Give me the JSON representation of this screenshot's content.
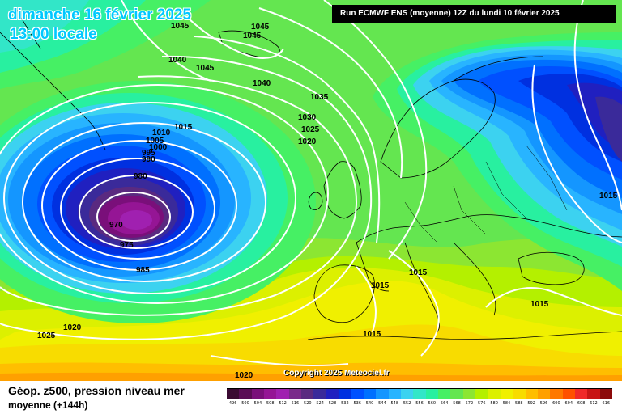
{
  "header": {
    "date": "dimanche 16 février 2025",
    "time": "13:00 locale",
    "run": "Run ECMWF ENS (moyenne) 12Z du lundi 10 février 2025"
  },
  "footer": {
    "title": "Géop. z500, pression niveau mer",
    "subtitle": "moyenne  (+144h)",
    "copyright": "Copyright 2025 Meteociel.fr"
  },
  "legend": {
    "ticks": [
      "496",
      "500",
      "504",
      "508",
      "512",
      "516",
      "520",
      "524",
      "528",
      "532",
      "536",
      "540",
      "544",
      "548",
      "552",
      "556",
      "560",
      "564",
      "568",
      "572",
      "576",
      "580",
      "584",
      "588",
      "592",
      "596",
      "600",
      "604",
      "608",
      "612",
      "616"
    ],
    "colors": [
      "#3a0a32",
      "#5a0c55",
      "#7a0f7a",
      "#951595",
      "#a020b0",
      "#7a2a8a",
      "#5a2a80",
      "#3a2a9a",
      "#2020c0",
      "#0030e0",
      "#0050ff",
      "#0070ff",
      "#1496ff",
      "#28b4ff",
      "#3cd2f0",
      "#32e6c8",
      "#28f0a0",
      "#46f064",
      "#64e650",
      "#8ce632",
      "#b4f000",
      "#dcf000",
      "#f0f000",
      "#f8dc00",
      "#ffbe00",
      "#ffa000",
      "#ff7800",
      "#ff5000",
      "#f02828",
      "#c81414",
      "#8c0a0a"
    ]
  },
  "isobar_labels": [
    "1045",
    "1045",
    "1045",
    "1040",
    "1045",
    "1040",
    "1035",
    "1030",
    "1025",
    "1020",
    "1015",
    "1010",
    "1005",
    "1000",
    "995",
    "990",
    "980",
    "970",
    "975",
    "985",
    "1015",
    "1015",
    "1015",
    "1015",
    "1025",
    "1020",
    "1015",
    "1020"
  ],
  "center_value": "970"
}
